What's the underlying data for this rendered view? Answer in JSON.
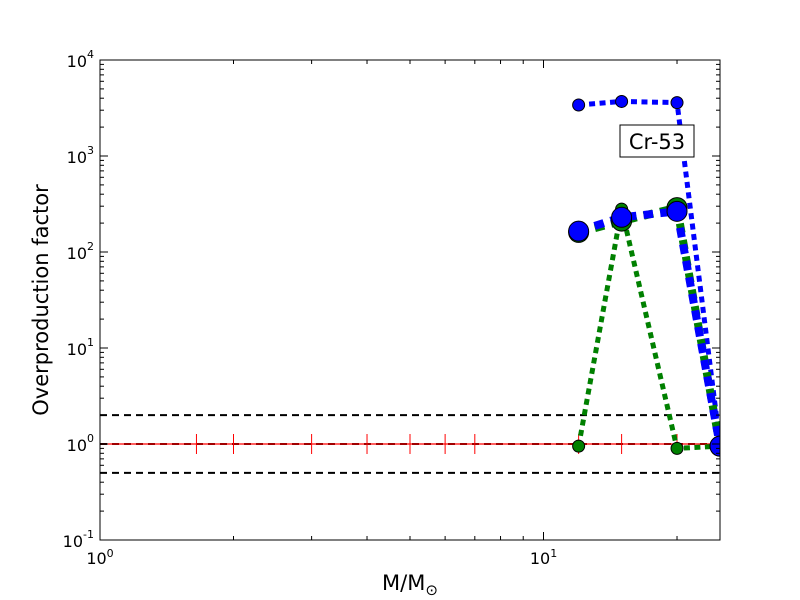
{
  "chart_data": {
    "type": "line",
    "title": "",
    "xlabel": "M/M",
    "xlabel_sub": "⊙",
    "ylabel": "Overproduction factor",
    "xscale": "log",
    "yscale": "log",
    "xlim": [
      1,
      25
    ],
    "ylim": [
      0.1,
      10000
    ],
    "grid": false,
    "annotation": "Cr-53",
    "x_ticks": [
      {
        "value": 1,
        "base": "10",
        "exp": "0"
      },
      {
        "value": 10,
        "base": "10",
        "exp": "1"
      }
    ],
    "y_ticks": [
      {
        "value": 0.1,
        "base": "10",
        "exp": "-1"
      },
      {
        "value": 1,
        "base": "10",
        "exp": "0"
      },
      {
        "value": 10,
        "base": "10",
        "exp": "1"
      },
      {
        "value": 100,
        "base": "10",
        "exp": "2"
      },
      {
        "value": 1000,
        "base": "10",
        "exp": "3"
      },
      {
        "value": 10000,
        "base": "10",
        "exp": "4"
      }
    ],
    "reference_lines": [
      {
        "y": 2,
        "color": "#000000",
        "style": "dashed"
      },
      {
        "y": 1,
        "color": "#000000",
        "style": "dashed"
      },
      {
        "y": 0.5,
        "color": "#000000",
        "style": "dashed"
      }
    ],
    "solar_line": {
      "y": 1,
      "color": "#ff0000",
      "marker_x": [
        1.65,
        2,
        3,
        4,
        5,
        6,
        7,
        12,
        15,
        20,
        25
      ]
    },
    "series": [
      {
        "color": "#0000ff",
        "linewidth": 5,
        "marker_size": 6,
        "x": [
          12,
          15,
          20,
          25
        ],
        "y": [
          3400,
          3700,
          3600,
          1.0
        ]
      },
      {
        "color": "#008000",
        "linewidth": 5,
        "marker_size": 6,
        "x": [
          12,
          15,
          20,
          25
        ],
        "y": [
          0.95,
          280,
          0.9,
          0.95
        ]
      },
      {
        "color": "#008000",
        "linewidth": 8,
        "marker_size": 10,
        "x": [
          12,
          15,
          20,
          25
        ],
        "y": [
          160,
          210,
          290,
          0.95
        ]
      },
      {
        "color": "#0000ff",
        "linewidth": 8,
        "marker_size": 10,
        "x": [
          12,
          15,
          20,
          25
        ],
        "y": [
          165,
          230,
          265,
          0.95
        ]
      }
    ]
  }
}
